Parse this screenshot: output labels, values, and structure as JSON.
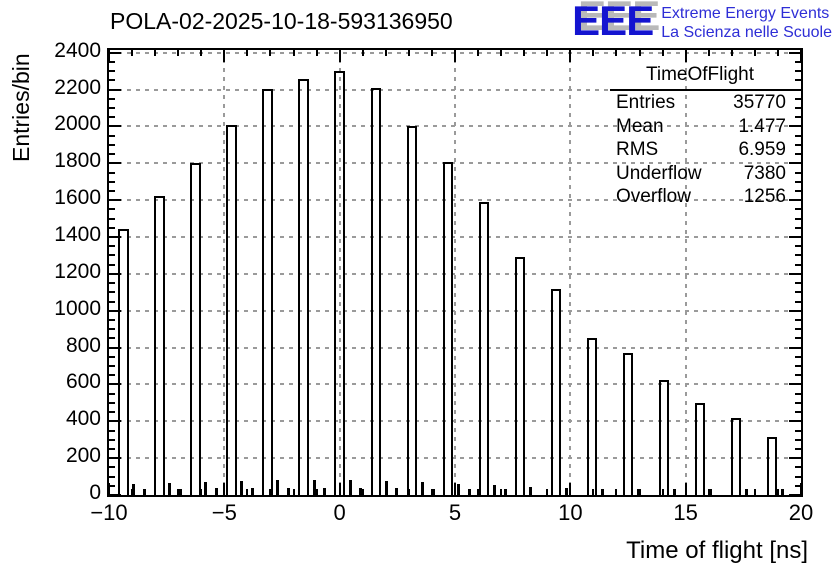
{
  "header": {
    "title": "POLA-02-2025-10-18-593136950",
    "logo": {
      "acronym": "EEE",
      "tagline1": "Extreme Energy Events",
      "tagline2": "La Scienza nelle Scuole",
      "blue": "#1414d0",
      "light_blue": "#2e2ed6",
      "shadow_gray": "#b9b9b9"
    }
  },
  "stats_box": {
    "title": "TimeOfFlight",
    "rows": [
      {
        "label": "Entries",
        "value": "35770"
      },
      {
        "label": "Mean",
        "value": "1.477"
      },
      {
        "label": "RMS",
        "value": "6.959"
      },
      {
        "label": "Underflow",
        "value": "7380"
      },
      {
        "label": "Overflow",
        "value": "1256"
      }
    ]
  },
  "chart_data": {
    "type": "bar",
    "title": "POLA-02-2025-10-18-593136950",
    "xlabel": "Time of flight [ns]",
    "ylabel": "Entries/bin",
    "xlim": [
      -10,
      20
    ],
    "ylim": [
      0,
      2415
    ],
    "grid": true,
    "grid_color": "#9a9a9a",
    "frame_color": "#000000",
    "x_major_step": 5,
    "x_minor_step": 1,
    "y_major_step": 200,
    "y_minor_step": 50,
    "x_major_ticks": [
      -10,
      -5,
      0,
      5,
      10,
      15,
      20
    ],
    "x_tick_labels": [
      "−10",
      "−5",
      "0",
      "5",
      "10",
      "15",
      "20"
    ],
    "y_major_ticks": [
      0,
      200,
      400,
      600,
      800,
      1000,
      1200,
      1400,
      1600,
      1800,
      2000,
      2200,
      2400
    ],
    "y_tick_labels": [
      "0",
      "200",
      "400",
      "600",
      "800",
      "1000",
      "1200",
      "1400",
      "1600",
      "1800",
      "2000",
      "2200",
      "2400"
    ],
    "x_gridlines": [
      -5,
      0,
      5,
      10,
      15
    ],
    "y_gridlines": [
      200,
      400,
      600,
      800,
      1000,
      1200,
      1400,
      1600,
      1800,
      2000,
      2200,
      2400
    ],
    "bin_spacing_ns": 1.5625,
    "bars": {
      "width_ns": 0.45,
      "x": [
        -9.375,
        -7.8125,
        -6.25,
        -4.6875,
        -3.125,
        -1.5625,
        0,
        1.5625,
        3.125,
        4.6875,
        6.25,
        7.8125,
        9.375,
        10.9375,
        12.5,
        14.0625,
        15.625,
        17.1875,
        18.75
      ],
      "values": [
        1445,
        1620,
        1800,
        2010,
        2205,
        2255,
        2300,
        2210,
        2005,
        1805,
        1590,
        1290,
        1120,
        850,
        770,
        625,
        500,
        420,
        315
      ]
    },
    "minor_bars": {
      "points": [
        [
          -8.93,
          60
        ],
        [
          -8.45,
          35
        ],
        [
          -7.36,
          65
        ],
        [
          -6.89,
          35
        ],
        [
          -5.8,
          70
        ],
        [
          -5.33,
          38
        ],
        [
          -4.24,
          75
        ],
        [
          -3.77,
          38
        ],
        [
          -2.68,
          80
        ],
        [
          -2.2,
          40
        ],
        [
          -1.11,
          80
        ],
        [
          -0.64,
          40
        ],
        [
          0.45,
          80
        ],
        [
          0.92,
          40
        ],
        [
          2.01,
          75
        ],
        [
          2.48,
          38
        ],
        [
          3.58,
          70
        ],
        [
          4.05,
          35
        ],
        [
          5.14,
          60
        ],
        [
          5.61,
          32
        ],
        [
          6.7,
          55
        ],
        [
          7.17,
          30
        ],
        [
          8.26,
          45
        ],
        [
          9.83,
          40
        ],
        [
          11.39,
          35
        ],
        [
          12.95,
          35
        ],
        [
          14.51,
          30
        ],
        [
          16.07,
          30
        ],
        [
          17.64,
          35
        ],
        [
          19.2,
          30
        ]
      ]
    }
  }
}
